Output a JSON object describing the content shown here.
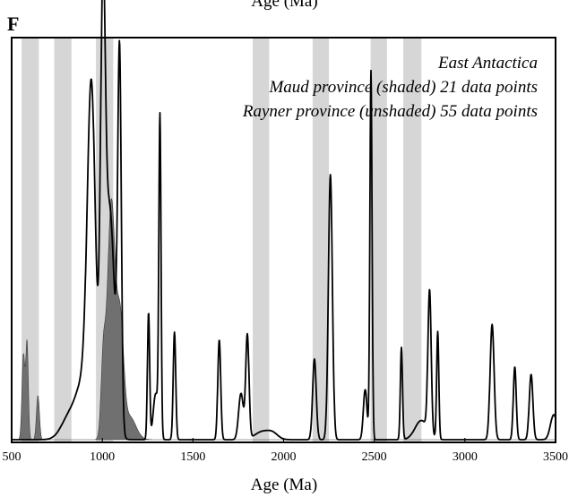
{
  "header": {
    "cut_title": "Age (Ma)",
    "panel_letter": "F"
  },
  "legend": {
    "line1": "East Antactica",
    "line2": "Maud province (shaded) 21 data points",
    "line3": "Rayner province (unshaded) 55 data points"
  },
  "chart_data": {
    "type": "area",
    "title": "",
    "xlabel": "Age (Ma)",
    "ylabel": "",
    "xlim": [
      500,
      3500
    ],
    "xticks": [
      500,
      1000,
      1500,
      2000,
      2500,
      3000,
      3500
    ],
    "tick_labels": [
      "500",
      "1000",
      "1500",
      "2000",
      "2500",
      "3000",
      "3500"
    ],
    "grid": false,
    "legend_position": "top-right",
    "shaded_bands": [
      [
        555,
        650
      ],
      [
        735,
        830
      ],
      [
        965,
        1060
      ],
      [
        1830,
        1920
      ],
      [
        2160,
        2250
      ],
      [
        2480,
        2570
      ],
      [
        2660,
        2760
      ]
    ],
    "series": [
      {
        "name": "Maud province (shaded)",
        "style": "filled",
        "color": "#707070",
        "peaks": [
          {
            "x": 565,
            "h": 0.22,
            "w": 8
          },
          {
            "x": 585,
            "h": 0.25,
            "w": 7
          },
          {
            "x": 645,
            "h": 0.115,
            "w": 8
          },
          {
            "x": 1005,
            "h": 0.19,
            "w": 12
          },
          {
            "x": 1050,
            "h": 0.62,
            "w": 22
          },
          {
            "x": 1100,
            "h": 0.28,
            "w": 18
          },
          {
            "x": 1150,
            "h": 0.06,
            "w": 35
          }
        ]
      },
      {
        "name": "Rayner province (unshaded)",
        "style": "line",
        "color": "#000000",
        "peaks": [
          {
            "x": 820,
            "h": 0.06,
            "w": 45
          },
          {
            "x": 900,
            "h": 0.14,
            "w": 40
          },
          {
            "x": 940,
            "h": 0.85,
            "w": 22
          },
          {
            "x": 1003,
            "h": 0.98,
            "w": 13
          },
          {
            "x": 1040,
            "h": 0.6,
            "w": 28
          },
          {
            "x": 1095,
            "h": 0.95,
            "w": 10
          },
          {
            "x": 1255,
            "h": 0.33,
            "w": 6
          },
          {
            "x": 1295,
            "h": 0.12,
            "w": 14
          },
          {
            "x": 1318,
            "h": 0.82,
            "w": 6
          },
          {
            "x": 1398,
            "h": 0.28,
            "w": 7
          },
          {
            "x": 1645,
            "h": 0.26,
            "w": 8
          },
          {
            "x": 1765,
            "h": 0.12,
            "w": 13
          },
          {
            "x": 1800,
            "h": 0.27,
            "w": 9
          },
          {
            "x": 1880,
            "h": 0.02,
            "w": 40
          },
          {
            "x": 1940,
            "h": 0.015,
            "w": 30
          },
          {
            "x": 2170,
            "h": 0.21,
            "w": 10
          },
          {
            "x": 2258,
            "h": 0.69,
            "w": 11
          },
          {
            "x": 2450,
            "h": 0.13,
            "w": 10
          },
          {
            "x": 2482,
            "h": 0.96,
            "w": 6
          },
          {
            "x": 2650,
            "h": 0.24,
            "w": 6
          },
          {
            "x": 2760,
            "h": 0.05,
            "w": 35
          },
          {
            "x": 2805,
            "h": 0.37,
            "w": 9
          },
          {
            "x": 2850,
            "h": 0.28,
            "w": 6
          },
          {
            "x": 3150,
            "h": 0.3,
            "w": 11
          },
          {
            "x": 3275,
            "h": 0.19,
            "w": 8
          },
          {
            "x": 3365,
            "h": 0.17,
            "w": 10
          },
          {
            "x": 3490,
            "h": 0.065,
            "w": 18
          }
        ]
      }
    ]
  }
}
